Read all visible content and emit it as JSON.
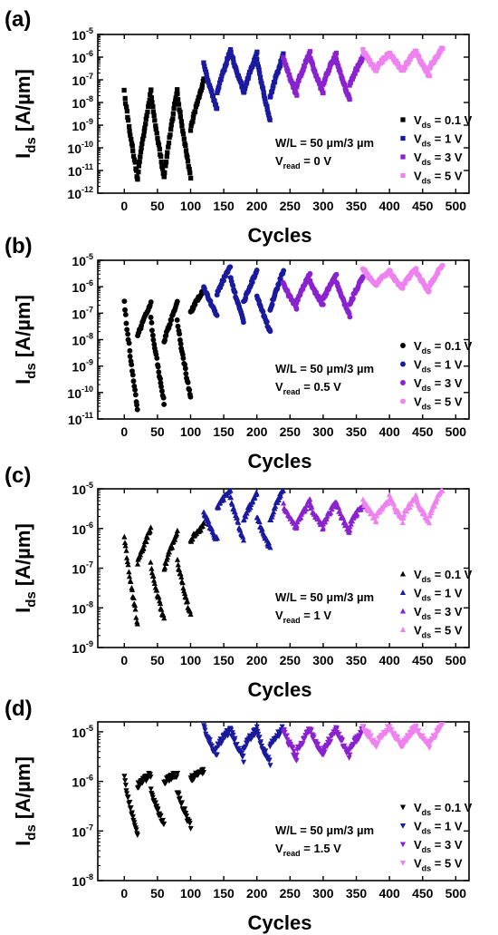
{
  "figure": {
    "xlabel": "Cycles",
    "x_ticks": [
      "0",
      "50",
      "100",
      "150",
      "200",
      "250",
      "300",
      "350",
      "400",
      "450",
      "500"
    ],
    "legend_prefix": "V",
    "legend_sub": "ds",
    "ylabel_main": "I",
    "ylabel_sub": "ds",
    "ylabel_unit": "[A/µm]",
    "wl_text": "W/L = 50 µm/3 µm",
    "read_sub": "read",
    "colors": {
      "0.1 V": "#000000",
      "1 V": "#1a1a9e",
      "3 V": "#8a22cf",
      "5 V": "#ee82ee"
    }
  },
  "chart_data": [
    {
      "panel_label": "(a)",
      "type": "scatter",
      "marker": "square",
      "xlim": [
        -40,
        520
      ],
      "ylim": [
        -12,
        -5
      ],
      "yscale": "log",
      "y_ticks": [
        {
          "base": "10",
          "exp": "-12"
        },
        {
          "base": "10",
          "exp": "-11"
        },
        {
          "base": "10",
          "exp": "-10"
        },
        {
          "base": "10",
          "exp": "-9"
        },
        {
          "base": "10",
          "exp": "-8"
        },
        {
          "base": "10",
          "exp": "-7"
        },
        {
          "base": "10",
          "exp": "-6"
        },
        {
          "base": "10",
          "exp": "-5"
        }
      ],
      "vread": "= 0 V",
      "series": [
        {
          "name": "= 0.1 V",
          "color": "#000000",
          "segments": [
            {
              "x0": 0,
              "x1": 20,
              "ys": -7.5,
              "ye": -11.4
            },
            {
              "x0": 20,
              "x1": 40,
              "ys": -11.3,
              "ye": -7.5
            },
            {
              "x0": 40,
              "x1": 60,
              "ys": -7.5,
              "ye": -11.3
            },
            {
              "x0": 60,
              "x1": 80,
              "ys": -11.3,
              "ye": -7.4
            },
            {
              "x0": 80,
              "x1": 100,
              "ys": -7.6,
              "ye": -11.3
            },
            {
              "x0": 100,
              "x1": 120,
              "ys": -9.2,
              "ye": -7.0
            }
          ]
        },
        {
          "name": "= 1 V",
          "color": "#1a1a9e",
          "segments": [
            {
              "x0": 120,
              "x1": 140,
              "ys": -6.3,
              "ye": -8.3
            },
            {
              "x0": 140,
              "x1": 160,
              "ys": -7.6,
              "ye": -5.7
            },
            {
              "x0": 160,
              "x1": 180,
              "ys": -5.7,
              "ye": -7.5
            },
            {
              "x0": 180,
              "x1": 200,
              "ys": -7.6,
              "ye": -5.8
            },
            {
              "x0": 200,
              "x1": 220,
              "ys": -6.1,
              "ye": -8.8
            },
            {
              "x0": 220,
              "x1": 240,
              "ys": -7.8,
              "ye": -5.9
            }
          ]
        },
        {
          "name": "= 3 V",
          "color": "#8a22cf",
          "segments": [
            {
              "x0": 240,
              "x1": 260,
              "ys": -6.0,
              "ye": -7.7
            },
            {
              "x0": 260,
              "x1": 280,
              "ys": -7.3,
              "ye": -5.8
            },
            {
              "x0": 280,
              "x1": 300,
              "ys": -6.0,
              "ye": -7.6
            },
            {
              "x0": 300,
              "x1": 320,
              "ys": -7.2,
              "ye": -5.8
            },
            {
              "x0": 320,
              "x1": 340,
              "ys": -6.1,
              "ye": -7.9
            },
            {
              "x0": 340,
              "x1": 360,
              "ys": -7.2,
              "ye": -6.0
            }
          ]
        },
        {
          "name": "= 5 V",
          "color": "#ee82ee",
          "segments": [
            {
              "x0": 360,
              "x1": 380,
              "ys": -5.7,
              "ye": -6.6
            },
            {
              "x0": 380,
              "x1": 400,
              "ys": -6.5,
              "ye": -5.8
            },
            {
              "x0": 400,
              "x1": 420,
              "ys": -5.8,
              "ye": -6.6
            },
            {
              "x0": 420,
              "x1": 440,
              "ys": -6.6,
              "ye": -5.7
            },
            {
              "x0": 440,
              "x1": 460,
              "ys": -5.8,
              "ye": -6.8
            },
            {
              "x0": 460,
              "x1": 480,
              "ys": -6.5,
              "ye": -5.6
            }
          ]
        }
      ]
    },
    {
      "panel_label": "(b)",
      "type": "scatter",
      "marker": "circle",
      "xlim": [
        -40,
        520
      ],
      "ylim": [
        -11,
        -5
      ],
      "yscale": "log",
      "y_ticks": [
        {
          "base": "10",
          "exp": "-11"
        },
        {
          "base": "10",
          "exp": "-10"
        },
        {
          "base": "10",
          "exp": "-9"
        },
        {
          "base": "10",
          "exp": "-8"
        },
        {
          "base": "10",
          "exp": "-7"
        },
        {
          "base": "10",
          "exp": "-6"
        },
        {
          "base": "10",
          "exp": "-5"
        }
      ],
      "vread": "= 0.5 V",
      "series": [
        {
          "name": "= 0.1 V",
          "color": "#000000",
          "segments": [
            {
              "x0": 0,
              "x1": 20,
              "ys": -6.6,
              "ye": -10.7
            },
            {
              "x0": 20,
              "x1": 40,
              "ys": -7.9,
              "ye": -6.6
            },
            {
              "x0": 40,
              "x1": 60,
              "ys": -7.2,
              "ye": -10.4
            },
            {
              "x0": 60,
              "x1": 80,
              "ys": -8.1,
              "ye": -6.6
            },
            {
              "x0": 80,
              "x1": 100,
              "ys": -7.3,
              "ye": -10.2
            },
            {
              "x0": 100,
              "x1": 120,
              "ys": -7.0,
              "ye": -6.1
            }
          ]
        },
        {
          "name": "= 1 V",
          "color": "#1a1a9e",
          "segments": [
            {
              "x0": 120,
              "x1": 140,
              "ys": -6.0,
              "ye": -7.1
            },
            {
              "x0": 140,
              "x1": 160,
              "ys": -6.3,
              "ye": -5.2
            },
            {
              "x0": 160,
              "x1": 180,
              "ys": -5.6,
              "ye": -7.3
            },
            {
              "x0": 180,
              "x1": 200,
              "ys": -6.6,
              "ye": -5.4
            },
            {
              "x0": 200,
              "x1": 220,
              "ys": -6.3,
              "ye": -7.7
            },
            {
              "x0": 220,
              "x1": 240,
              "ys": -6.9,
              "ye": -5.4
            }
          ]
        },
        {
          "name": "= 3 V",
          "color": "#8a22cf",
          "segments": [
            {
              "x0": 240,
              "x1": 260,
              "ys": -5.9,
              "ye": -6.8
            },
            {
              "x0": 260,
              "x1": 280,
              "ys": -6.6,
              "ye": -5.5
            },
            {
              "x0": 280,
              "x1": 300,
              "ys": -5.8,
              "ye": -6.7
            },
            {
              "x0": 300,
              "x1": 320,
              "ys": -6.5,
              "ye": -5.5
            },
            {
              "x0": 320,
              "x1": 340,
              "ys": -5.8,
              "ye": -7.1
            },
            {
              "x0": 340,
              "x1": 360,
              "ys": -6.7,
              "ye": -5.6
            }
          ]
        },
        {
          "name": "= 5 V",
          "color": "#ee82ee",
          "segments": [
            {
              "x0": 360,
              "x1": 380,
              "ys": -5.3,
              "ye": -6.0
            },
            {
              "x0": 380,
              "x1": 400,
              "ys": -5.9,
              "ye": -5.4
            },
            {
              "x0": 400,
              "x1": 420,
              "ys": -5.4,
              "ye": -6.1
            },
            {
              "x0": 420,
              "x1": 440,
              "ys": -6.0,
              "ye": -5.3
            },
            {
              "x0": 440,
              "x1": 460,
              "ys": -5.4,
              "ye": -6.2
            },
            {
              "x0": 460,
              "x1": 480,
              "ys": -6.0,
              "ye": -5.2
            }
          ]
        }
      ]
    },
    {
      "panel_label": "(c)",
      "type": "scatter",
      "marker": "triangle-up",
      "xlim": [
        -40,
        520
      ],
      "ylim": [
        -9,
        -5
      ],
      "yscale": "log",
      "y_ticks": [
        {
          "base": "10",
          "exp": "-9"
        },
        {
          "base": "10",
          "exp": "-8"
        },
        {
          "base": "10",
          "exp": "-7"
        },
        {
          "base": "10",
          "exp": "-6"
        },
        {
          "base": "10",
          "exp": "-5"
        }
      ],
      "vread": "= 1 V",
      "series": [
        {
          "name": "= 0.1 V",
          "color": "#000000",
          "segments": [
            {
              "x0": 0,
              "x1": 20,
              "ys": -6.2,
              "ye": -8.4
            },
            {
              "x0": 20,
              "x1": 40,
              "ys": -6.9,
              "ye": -6.0
            },
            {
              "x0": 40,
              "x1": 60,
              "ys": -6.9,
              "ye": -8.3
            },
            {
              "x0": 60,
              "x1": 80,
              "ys": -7.0,
              "ye": -6.1
            },
            {
              "x0": 80,
              "x1": 100,
              "ys": -6.8,
              "ye": -8.2
            },
            {
              "x0": 100,
              "x1": 120,
              "ys": -6.3,
              "ye": -5.9
            }
          ]
        },
        {
          "name": "= 1 V",
          "color": "#1a1a9e",
          "segments": [
            {
              "x0": 120,
              "x1": 140,
              "ys": -5.6,
              "ye": -6.3
            },
            {
              "x0": 140,
              "x1": 160,
              "ys": -5.5,
              "ye": -5.0
            },
            {
              "x0": 160,
              "x1": 180,
              "ys": -5.2,
              "ye": -6.3
            },
            {
              "x0": 180,
              "x1": 200,
              "ys": -5.8,
              "ye": -5.1
            },
            {
              "x0": 200,
              "x1": 220,
              "ys": -5.7,
              "ye": -6.5
            },
            {
              "x0": 220,
              "x1": 240,
              "ys": -5.8,
              "ye": -5.0
            }
          ]
        },
        {
          "name": "= 3 V",
          "color": "#8a22cf",
          "segments": [
            {
              "x0": 240,
              "x1": 260,
              "ys": -5.4,
              "ye": -6.0
            },
            {
              "x0": 260,
              "x1": 280,
              "ys": -5.9,
              "ye": -5.3
            },
            {
              "x0": 280,
              "x1": 300,
              "ys": -5.4,
              "ye": -6.0
            },
            {
              "x0": 300,
              "x1": 320,
              "ys": -5.9,
              "ye": -5.3
            },
            {
              "x0": 320,
              "x1": 340,
              "ys": -5.4,
              "ye": -6.1
            },
            {
              "x0": 340,
              "x1": 360,
              "ys": -5.9,
              "ye": -5.4
            }
          ]
        },
        {
          "name": "= 5 V",
          "color": "#ee82ee",
          "segments": [
            {
              "x0": 360,
              "x1": 380,
              "ys": -5.3,
              "ye": -5.8
            },
            {
              "x0": 380,
              "x1": 400,
              "ys": -5.7,
              "ye": -5.3
            },
            {
              "x0": 400,
              "x1": 420,
              "ys": -5.2,
              "ye": -5.8
            },
            {
              "x0": 420,
              "x1": 440,
              "ys": -5.7,
              "ye": -5.2
            },
            {
              "x0": 440,
              "x1": 460,
              "ys": -5.2,
              "ye": -5.9
            },
            {
              "x0": 460,
              "x1": 480,
              "ys": -5.7,
              "ye": -5.0
            }
          ]
        }
      ]
    },
    {
      "panel_label": "(d)",
      "type": "scatter",
      "marker": "triangle-down",
      "xlim": [
        -40,
        520
      ],
      "ylim": [
        -8,
        -4.8
      ],
      "yscale": "log",
      "y_ticks": [
        {
          "base": "10",
          "exp": "-8"
        },
        {
          "base": "10",
          "exp": "-7"
        },
        {
          "base": "10",
          "exp": "-6"
        },
        {
          "base": "10",
          "exp": "-5"
        }
      ],
      "vread": "= 1.5 V",
      "series": [
        {
          "name": "= 0.1 V",
          "color": "#000000",
          "segments": [
            {
              "x0": 0,
              "x1": 20,
              "ys": -5.95,
              "ye": -7.1
            },
            {
              "x0": 20,
              "x1": 40,
              "ys": -6.1,
              "ye": -5.85
            },
            {
              "x0": 40,
              "x1": 60,
              "ys": -6.2,
              "ye": -6.9
            },
            {
              "x0": 60,
              "x1": 80,
              "ys": -6.0,
              "ye": -5.85
            },
            {
              "x0": 80,
              "x1": 100,
              "ys": -6.2,
              "ye": -6.9
            },
            {
              "x0": 100,
              "x1": 120,
              "ys": -5.95,
              "ye": -5.8
            }
          ]
        },
        {
          "name": "= 1 V",
          "color": "#1a1a9e",
          "segments": [
            {
              "x0": 120,
              "x1": 140,
              "ys": -4.9,
              "ye": -5.5
            },
            {
              "x0": 140,
              "x1": 160,
              "ys": -5.3,
              "ye": -4.95
            },
            {
              "x0": 160,
              "x1": 180,
              "ys": -4.95,
              "ye": -5.55
            },
            {
              "x0": 180,
              "x1": 200,
              "ys": -5.3,
              "ye": -4.95
            },
            {
              "x0": 200,
              "x1": 220,
              "ys": -5.0,
              "ye": -5.65
            },
            {
              "x0": 220,
              "x1": 240,
              "ys": -5.3,
              "ye": -4.9
            }
          ]
        },
        {
          "name": "= 3 V",
          "color": "#8a22cf",
          "segments": [
            {
              "x0": 240,
              "x1": 260,
              "ys": -4.95,
              "ye": -5.55
            },
            {
              "x0": 260,
              "x1": 280,
              "ys": -5.4,
              "ye": -4.95
            },
            {
              "x0": 280,
              "x1": 300,
              "ys": -4.95,
              "ye": -5.5
            },
            {
              "x0": 300,
              "x1": 320,
              "ys": -5.4,
              "ye": -4.95
            },
            {
              "x0": 320,
              "x1": 340,
              "ys": -4.95,
              "ye": -5.5
            },
            {
              "x0": 340,
              "x1": 360,
              "ys": -5.4,
              "ye": -4.95
            }
          ]
        },
        {
          "name": "= 5 V",
          "color": "#ee82ee",
          "segments": [
            {
              "x0": 360,
              "x1": 380,
              "ys": -4.9,
              "ye": -5.25
            },
            {
              "x0": 380,
              "x1": 400,
              "ys": -5.25,
              "ye": -4.9
            },
            {
              "x0": 400,
              "x1": 420,
              "ys": -4.9,
              "ye": -5.3
            },
            {
              "x0": 420,
              "x1": 440,
              "ys": -5.25,
              "ye": -4.9
            },
            {
              "x0": 440,
              "x1": 460,
              "ys": -4.9,
              "ye": -5.3
            },
            {
              "x0": 460,
              "x1": 480,
              "ys": -5.25,
              "ye": -4.85
            }
          ]
        }
      ]
    }
  ]
}
